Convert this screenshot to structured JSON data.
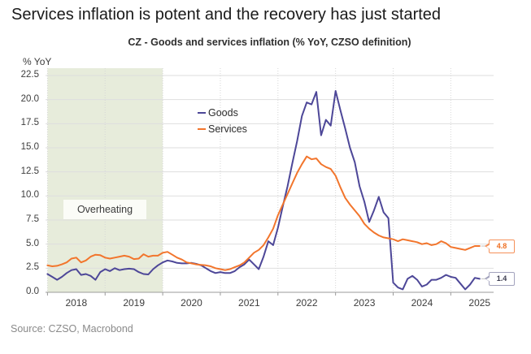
{
  "page": {
    "title": "Services inflation is potent and the recovery has just started",
    "source": "Source: CZSO, Macrobond"
  },
  "chart_data": {
    "type": "line",
    "title": "CZ - Goods and services inflation (% YoY, CZSO definition)",
    "unit_label": "% YoY",
    "frequency": "monthly",
    "x_start": "2018-01",
    "x_end": "2025-07",
    "ylim": [
      0,
      22.5
    ],
    "grid": true,
    "legend_position": "inside-upper-left",
    "y_ticks": [
      "0.0",
      "2.5",
      "5.0",
      "7.5",
      "10.0",
      "12.5",
      "15.0",
      "17.5",
      "20.0",
      "22.5"
    ],
    "x_tick_labels": [
      "2018",
      "2019",
      "2020",
      "2021",
      "2022",
      "2023",
      "2024",
      "2025"
    ],
    "annotation_band": {
      "label": "Overheating",
      "from": "2018-01",
      "to": "2020-01",
      "color": "#e7ecdb"
    },
    "colors": {
      "gridline": "#dedede",
      "axis": "#9b9b9b",
      "vgridline": "#d6d6d6",
      "connector": "#c4c4c4"
    },
    "series": [
      {
        "name": "Goods",
        "color": "#4d4798",
        "end_label": "1.4",
        "end_label_border": "#a3a3bd",
        "end_label_text": "#3c3c50",
        "values": [
          1.9,
          1.6,
          1.3,
          1.6,
          2.0,
          2.3,
          2.4,
          1.8,
          1.9,
          1.7,
          1.3,
          2.1,
          2.4,
          2.2,
          2.5,
          2.3,
          2.4,
          2.45,
          2.4,
          2.1,
          1.9,
          1.85,
          2.4,
          2.8,
          3.1,
          3.3,
          3.2,
          3.05,
          3.0,
          3.0,
          3.05,
          2.95,
          2.8,
          2.5,
          2.2,
          2.0,
          2.1,
          2.0,
          2.0,
          2.2,
          2.6,
          2.9,
          3.4,
          2.9,
          2.4,
          3.7,
          5.3,
          4.9,
          6.7,
          8.9,
          11.0,
          13.4,
          15.7,
          18.3,
          19.7,
          19.5,
          20.8,
          16.3,
          17.9,
          17.3,
          20.9,
          18.9,
          17.0,
          15.0,
          13.5,
          11.0,
          9.4,
          7.3,
          8.5,
          9.9,
          8.3,
          7.7,
          1.0,
          0.5,
          0.3,
          1.4,
          1.7,
          1.3,
          0.6,
          0.8,
          1.3,
          1.3,
          1.5,
          1.8,
          1.6,
          1.5,
          0.9,
          0.3,
          0.8,
          1.5,
          1.4
        ]
      },
      {
        "name": "Services",
        "color": "#f2752c",
        "end_label": "4.8",
        "end_label_border": "#f5915a",
        "end_label_text": "#ef7023",
        "values": [
          2.8,
          2.7,
          2.75,
          2.9,
          3.1,
          3.5,
          3.6,
          3.1,
          3.3,
          3.7,
          3.9,
          3.85,
          3.6,
          3.5,
          3.6,
          3.7,
          3.8,
          3.7,
          3.45,
          3.5,
          3.95,
          3.7,
          3.8,
          3.8,
          4.1,
          4.2,
          3.9,
          3.6,
          3.4,
          3.1,
          3.0,
          2.9,
          2.85,
          2.8,
          2.7,
          2.5,
          2.4,
          2.3,
          2.4,
          2.6,
          2.8,
          3.1,
          3.6,
          4.1,
          4.4,
          4.9,
          5.7,
          6.6,
          8.0,
          9.1,
          10.2,
          11.3,
          12.4,
          13.3,
          14.1,
          13.8,
          13.9,
          13.3,
          13.0,
          12.8,
          12.1,
          10.9,
          9.8,
          9.1,
          8.5,
          7.9,
          7.1,
          6.6,
          6.2,
          5.9,
          5.7,
          5.6,
          5.5,
          5.3,
          5.5,
          5.4,
          5.3,
          5.2,
          5.0,
          5.1,
          4.9,
          5.0,
          5.3,
          5.1,
          4.7,
          4.6,
          4.5,
          4.4,
          4.6,
          4.8,
          4.8
        ]
      }
    ]
  }
}
